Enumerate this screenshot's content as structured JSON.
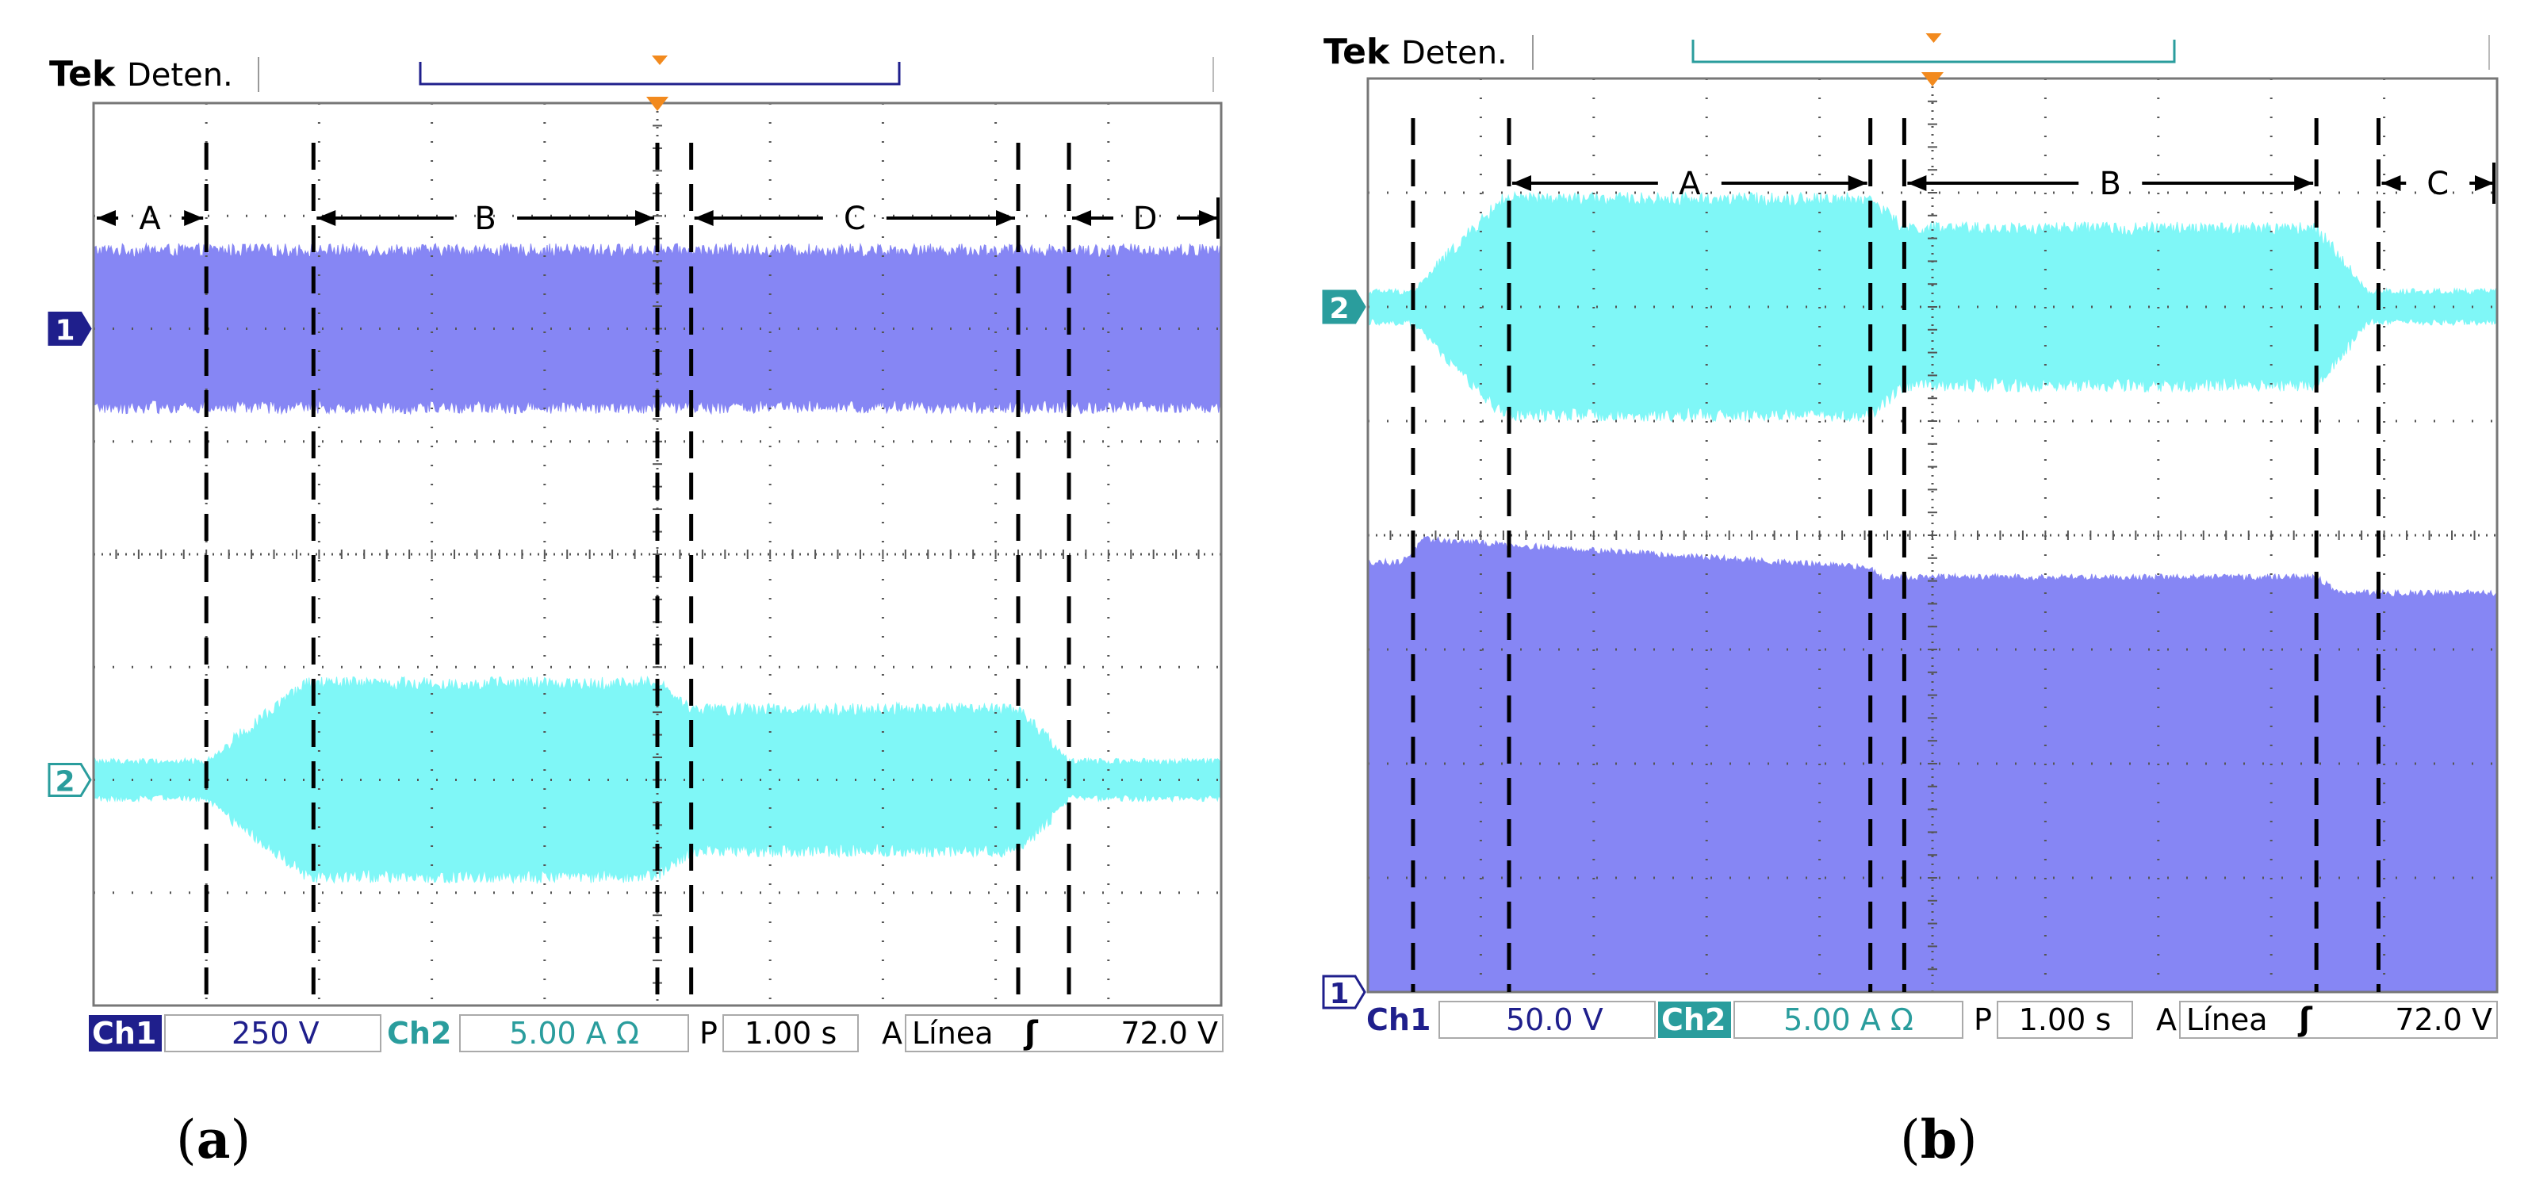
{
  "colors": {
    "ch1": "#8686f4",
    "ch2": "#7ff7f7",
    "ch1_label": "#1f1f8c",
    "ch2_label": "#2a9d9d",
    "trigger": "#f28a1e",
    "grid": "#555555",
    "screen_bg": "#ffffff"
  },
  "figure": {
    "caption_a": "a",
    "caption_b": "b"
  },
  "chart_data": [
    {
      "type": "oscilloscope-trace",
      "panel": "a",
      "brand": "Tek",
      "status": "Deten.",
      "x_range": [
        0,
        10
      ],
      "y_range": [
        -4,
        4
      ],
      "x_unit": "s",
      "y_unit": "div",
      "grid": true,
      "channel_markers": [
        {
          "label": "1",
          "channel": "ch1",
          "level": 2.0
        },
        {
          "label": "2",
          "channel": "ch2",
          "level": -2.0
        }
      ],
      "segments": [
        {
          "label": "A",
          "start": 0.0,
          "end": 1.0
        },
        {
          "label": "B",
          "start": 1.95,
          "end": 5.0
        },
        {
          "label": "C",
          "start": 5.3,
          "end": 8.2
        },
        {
          "label": "D",
          "start": 8.65,
          "end": 10.0
        }
      ],
      "dashed_lines": [
        1.0,
        1.95,
        5.0,
        5.3,
        8.2,
        8.65
      ],
      "series": [
        {
          "name": "Ch1",
          "channel": "ch1",
          "type": "band",
          "center": 2.0,
          "x": [
            0,
            10
          ],
          "amplitude": [
            0.67,
            0.67
          ]
        },
        {
          "name": "Ch2",
          "channel": "ch2",
          "type": "band",
          "center": -2.0,
          "x": [
            0,
            1.0,
            1.9,
            5.0,
            5.3,
            8.2,
            8.65,
            10.0
          ],
          "amplitude": [
            0.15,
            0.15,
            0.83,
            0.83,
            0.6,
            0.6,
            0.15,
            0.15
          ]
        }
      ],
      "footer": {
        "ch1_label": "Ch1",
        "ch1_scale": "250 V",
        "ch2_label": "Ch2",
        "ch2_scale": "5.00 A Ω",
        "time_label": "P",
        "time_scale": "1.00 s",
        "trig_label": "A",
        "trig_source": "Línea",
        "trig_slope": "ʃ",
        "trig_level": "72.0 V",
        "ch2_highlight": false
      }
    },
    {
      "type": "oscilloscope-trace",
      "panel": "b",
      "brand": "Tek",
      "status": "Deten.",
      "x_range": [
        0,
        10
      ],
      "y_range": [
        -4,
        4
      ],
      "x_unit": "s",
      "y_unit": "div",
      "grid": true,
      "channel_markers": [
        {
          "label": "2",
          "channel": "ch2",
          "level": 2.0
        },
        {
          "label": "1",
          "channel": "ch1",
          "level": -4.0
        }
      ],
      "segments": [
        {
          "label": "A",
          "start": 1.25,
          "end": 4.45
        },
        {
          "label": "B",
          "start": 4.75,
          "end": 8.4
        },
        {
          "label": "C",
          "start": 8.95,
          "end": 10.0
        }
      ],
      "dashed_lines": [
        0.4,
        1.25,
        4.45,
        4.75,
        8.4,
        8.95
      ],
      "series": [
        {
          "name": "Ch2",
          "channel": "ch2",
          "type": "band",
          "center": 2.0,
          "x": [
            0,
            0.4,
            1.2,
            4.45,
            4.75,
            8.4,
            8.85,
            10.0
          ],
          "amplitude": [
            0.12,
            0.12,
            0.92,
            0.92,
            0.66,
            0.66,
            0.12,
            0.12
          ]
        },
        {
          "name": "Ch1",
          "channel": "ch1",
          "type": "fill",
          "bottom": -4.0,
          "x": [
            0,
            0.3,
            0.5,
            4.45,
            4.55,
            8.4,
            8.6,
            10.0
          ],
          "top": [
            -0.25,
            -0.25,
            -0.05,
            -0.3,
            -0.38,
            -0.38,
            -0.52,
            -0.52
          ]
        }
      ],
      "footer": {
        "ch1_label": "Ch1",
        "ch1_scale": "50.0 V",
        "ch2_label": "Ch2",
        "ch2_scale": "5.00 A Ω",
        "time_label": "P",
        "time_scale": "1.00 s",
        "trig_label": "A",
        "trig_source": "Línea",
        "trig_slope": "ʃ",
        "trig_level": "72.0 V",
        "ch2_highlight": true
      }
    }
  ]
}
